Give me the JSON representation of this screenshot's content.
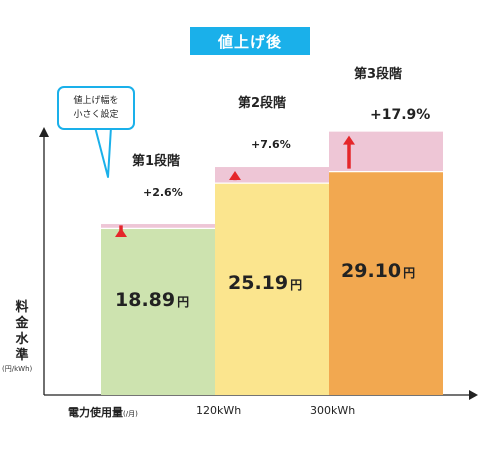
{
  "title": "値上げ後",
  "callout": {
    "line1": "値上げ幅を",
    "line2": "小さく設定"
  },
  "y_axis": {
    "label_chars": [
      "料",
      "金",
      "水",
      "準"
    ],
    "unit": "(円/kWh)"
  },
  "x_axis": {
    "label": "電力使用量",
    "unit": "(/月)"
  },
  "colors": {
    "stage1": "#cde3af",
    "stage2": "#fbe58e",
    "stage3": "#f2a850",
    "increase": "#eec6d6",
    "arrow": "#e5262a",
    "badge": "#1ab0ea"
  },
  "chart_data": {
    "type": "bar",
    "categories": [
      "第1段階",
      "第2段階",
      "第3段階"
    ],
    "x_ticks": [
      "120kWh",
      "300kWh"
    ],
    "values": [
      18.89,
      25.19,
      29.1
    ],
    "value_labels": [
      "18.89",
      "25.19",
      "29.10"
    ],
    "value_unit": "円",
    "increase_labels": [
      "+2.6%",
      "+7.6%",
      "+17.9%"
    ],
    "increase_pct": [
      2.6,
      7.6,
      17.9
    ]
  }
}
